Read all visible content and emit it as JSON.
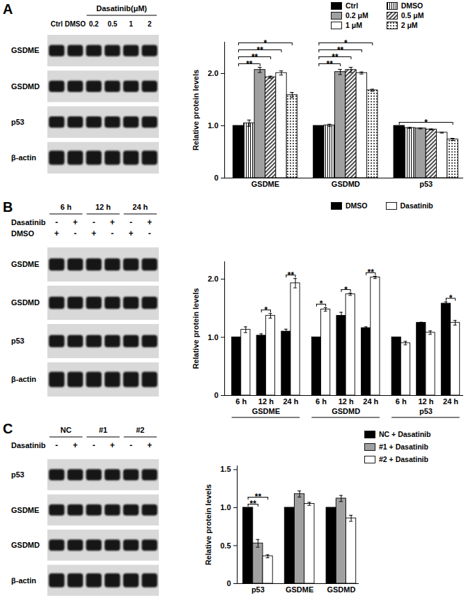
{
  "chart_data": [
    {
      "panel": "A",
      "type": "bar",
      "categories": [
        "GSDME",
        "GSDMD",
        "p53"
      ],
      "series": [
        {
          "name": "Ctrl",
          "color": "#000000",
          "values": [
            1,
            1,
            1
          ],
          "errors": [
            0,
            0,
            0
          ]
        },
        {
          "name": "DMSO",
          "color": "#ffffff",
          "marker": "vertical",
          "values": [
            1.05,
            1.01,
            0.96
          ],
          "errors": [
            0.06,
            0.02,
            0.01
          ]
        },
        {
          "name": "0.2 μM",
          "color": "#a0a0a0",
          "values": [
            2.07,
            2.03,
            0.95
          ],
          "errors": [
            0.05,
            0.05,
            0.01
          ]
        },
        {
          "name": "0.5 μM",
          "color": "#ffffff",
          "marker": "diagonal",
          "values": [
            1.93,
            2.07,
            0.93
          ],
          "errors": [
            0.02,
            0.05,
            0.01
          ]
        },
        {
          "name": "1 μM",
          "color": "#ffffff",
          "values": [
            2.01,
            2.01,
            0.87
          ],
          "errors": [
            0.04,
            0.02,
            0.01
          ]
        },
        {
          "name": "2 μM",
          "color": "#ffffff",
          "marker": "dots",
          "values": [
            1.59,
            1.68,
            0.74
          ],
          "errors": [
            0.05,
            0.02,
            0.02
          ]
        }
      ],
      "ylabel": "Relative protein levels",
      "ylim": [
        0,
        2.6
      ],
      "yticks": [
        0,
        {
          "value": 1,
          "label": "1.0"
        },
        {
          "value": 2,
          "label": "2.0"
        }
      ],
      "legend": "top",
      "annotations": [
        {
          "index": 0,
          "from": "Ctrl",
          "to": "0.2 μM",
          "label": "**"
        },
        {
          "index": 0,
          "from": "Ctrl",
          "to": "0.5 μM",
          "label": "**"
        },
        {
          "index": 0,
          "from": "Ctrl",
          "to": "1 μM",
          "label": "**"
        },
        {
          "index": 0,
          "from": "Ctrl",
          "to": "2 μM",
          "label": "*"
        },
        {
          "index": 1,
          "from": "Ctrl",
          "to": "0.2 μM",
          "label": "**"
        },
        {
          "index": 1,
          "from": "Ctrl",
          "to": "0.5 μM",
          "label": "**"
        },
        {
          "index": 1,
          "from": "Ctrl",
          "to": "1 μM",
          "label": "**"
        },
        {
          "index": 1,
          "from": "Ctrl",
          "to": "2 μM",
          "label": "*"
        },
        {
          "index": 2,
          "from": "Ctrl",
          "to": "2 μM",
          "label": "*"
        }
      ]
    },
    {
      "panel": "B",
      "type": "bar",
      "categories": [
        "6 h",
        "12 h",
        "24 h",
        "6 h",
        "12 h",
        "24 h",
        "6 h",
        "12 h",
        "24 h"
      ],
      "groups": [
        "GSDME",
        "GSDMD",
        "p53"
      ],
      "series": [
        {
          "name": "DMSO",
          "color": "#000000",
          "values": [
            1,
            1.03,
            1.1,
            1,
            1.37,
            1.16,
            1,
            1.25,
            1.58
          ],
          "errors": [
            0,
            0.03,
            0.04,
            0,
            0.06,
            0.02,
            0,
            0.01,
            0.03
          ]
        },
        {
          "name": "Dasatinib",
          "color": "#ffffff",
          "values": [
            1.13,
            1.37,
            1.93,
            1.48,
            1.74,
            2.03,
            0.9,
            1.08,
            1.25
          ],
          "errors": [
            0.05,
            0.04,
            0.08,
            0.03,
            0.02,
            0.02,
            0.03,
            0.03,
            0.04
          ]
        }
      ],
      "ylabel": "Relative protein levels",
      "ylim": [
        0,
        2.3
      ],
      "yticks": [
        0,
        {
          "value": 1,
          "label": "1.0"
        },
        {
          "value": 2,
          "label": "2.0"
        }
      ],
      "legend": "top",
      "annotations": [
        {
          "index": 1,
          "from": "DMSO",
          "to": "Dasatinib",
          "label": "*"
        },
        {
          "index": 2,
          "from": "DMSO",
          "to": "Dasatinib",
          "label": "**"
        },
        {
          "index": 3,
          "from": "DMSO",
          "to": "Dasatinib",
          "label": "*"
        },
        {
          "index": 4,
          "from": "DMSO",
          "to": "Dasatinib",
          "label": "*"
        },
        {
          "index": 5,
          "from": "DMSO",
          "to": "Dasatinib",
          "label": "**"
        },
        {
          "index": 8,
          "from": "DMSO",
          "to": "Dasatinib",
          "label": "*"
        }
      ]
    },
    {
      "panel": "C",
      "type": "bar",
      "categories": [
        "p53",
        "GSDME",
        "GSDMD"
      ],
      "series": [
        {
          "name": "NC + Dasatinib",
          "color": "#000000",
          "values": [
            1,
            1,
            1
          ],
          "errors": [
            0,
            0,
            0
          ]
        },
        {
          "name": "#1 + Dasatinib",
          "color": "#a0a0a0",
          "values": [
            0.53,
            1.18,
            1.12
          ],
          "errors": [
            0.05,
            0.04,
            0.04
          ]
        },
        {
          "name": "#2 + Dasatinib",
          "color": "#ffffff",
          "values": [
            0.36,
            1.05,
            0.86
          ],
          "errors": [
            0.02,
            0.02,
            0.04
          ]
        }
      ],
      "ylabel": "Relative protein levels",
      "ylim": [
        0,
        1.55
      ],
      "yticks": [
        0,
        0.5,
        {
          "value": 1,
          "label": "1.0"
        },
        1.5
      ],
      "legend": "right",
      "annotations": [
        {
          "index": 0,
          "from": "NC + Dasatinib",
          "to": "#1 + Dasatinib",
          "label": "**"
        },
        {
          "index": 0,
          "from": "NC + Dasatinib",
          "to": "#2 + Dasatinib",
          "label": "**"
        }
      ]
    }
  ],
  "blots": [
    {
      "rows": [
        "GSDME",
        "GSDMD",
        "p53",
        "β-actin"
      ],
      "lane_labels": [
        "Ctrl",
        "DMSO",
        "0.2",
        "0.5",
        "1",
        "2"
      ],
      "groups": [
        {
          "label": "Dasatinib(μM)",
          "start": 2,
          "size": 4
        }
      ]
    },
    {
      "rows": [
        "GSDME",
        "GSDMD",
        "p53",
        "β-actin"
      ],
      "groups": [
        {
          "label": "6 h",
          "start": 0,
          "size": 2
        },
        {
          "label": "12 h",
          "start": 2,
          "size": 2
        },
        {
          "label": "24 h",
          "start": 4,
          "size": 2
        }
      ],
      "treatments": [
        {
          "label": "Dasatinib",
          "signs": [
            "-",
            "+",
            "-",
            "+",
            "-",
            "+"
          ]
        },
        {
          "label": "DMSO",
          "signs": [
            "+",
            "-",
            "+",
            "-",
            "+",
            "-"
          ]
        }
      ]
    },
    {
      "rows": [
        "p53",
        "GSDME",
        "GSDMD",
        "β-actin"
      ],
      "groups": [
        {
          "label": "NC",
          "start": 0,
          "size": 2
        },
        {
          "label": "#1",
          "start": 2,
          "size": 2
        },
        {
          "label": "#2",
          "start": 4,
          "size": 2
        }
      ],
      "treatments": [
        {
          "label": "Dasatinib",
          "signs": [
            "-",
            "+",
            "-",
            "+",
            "-",
            "+"
          ]
        }
      ]
    }
  ]
}
